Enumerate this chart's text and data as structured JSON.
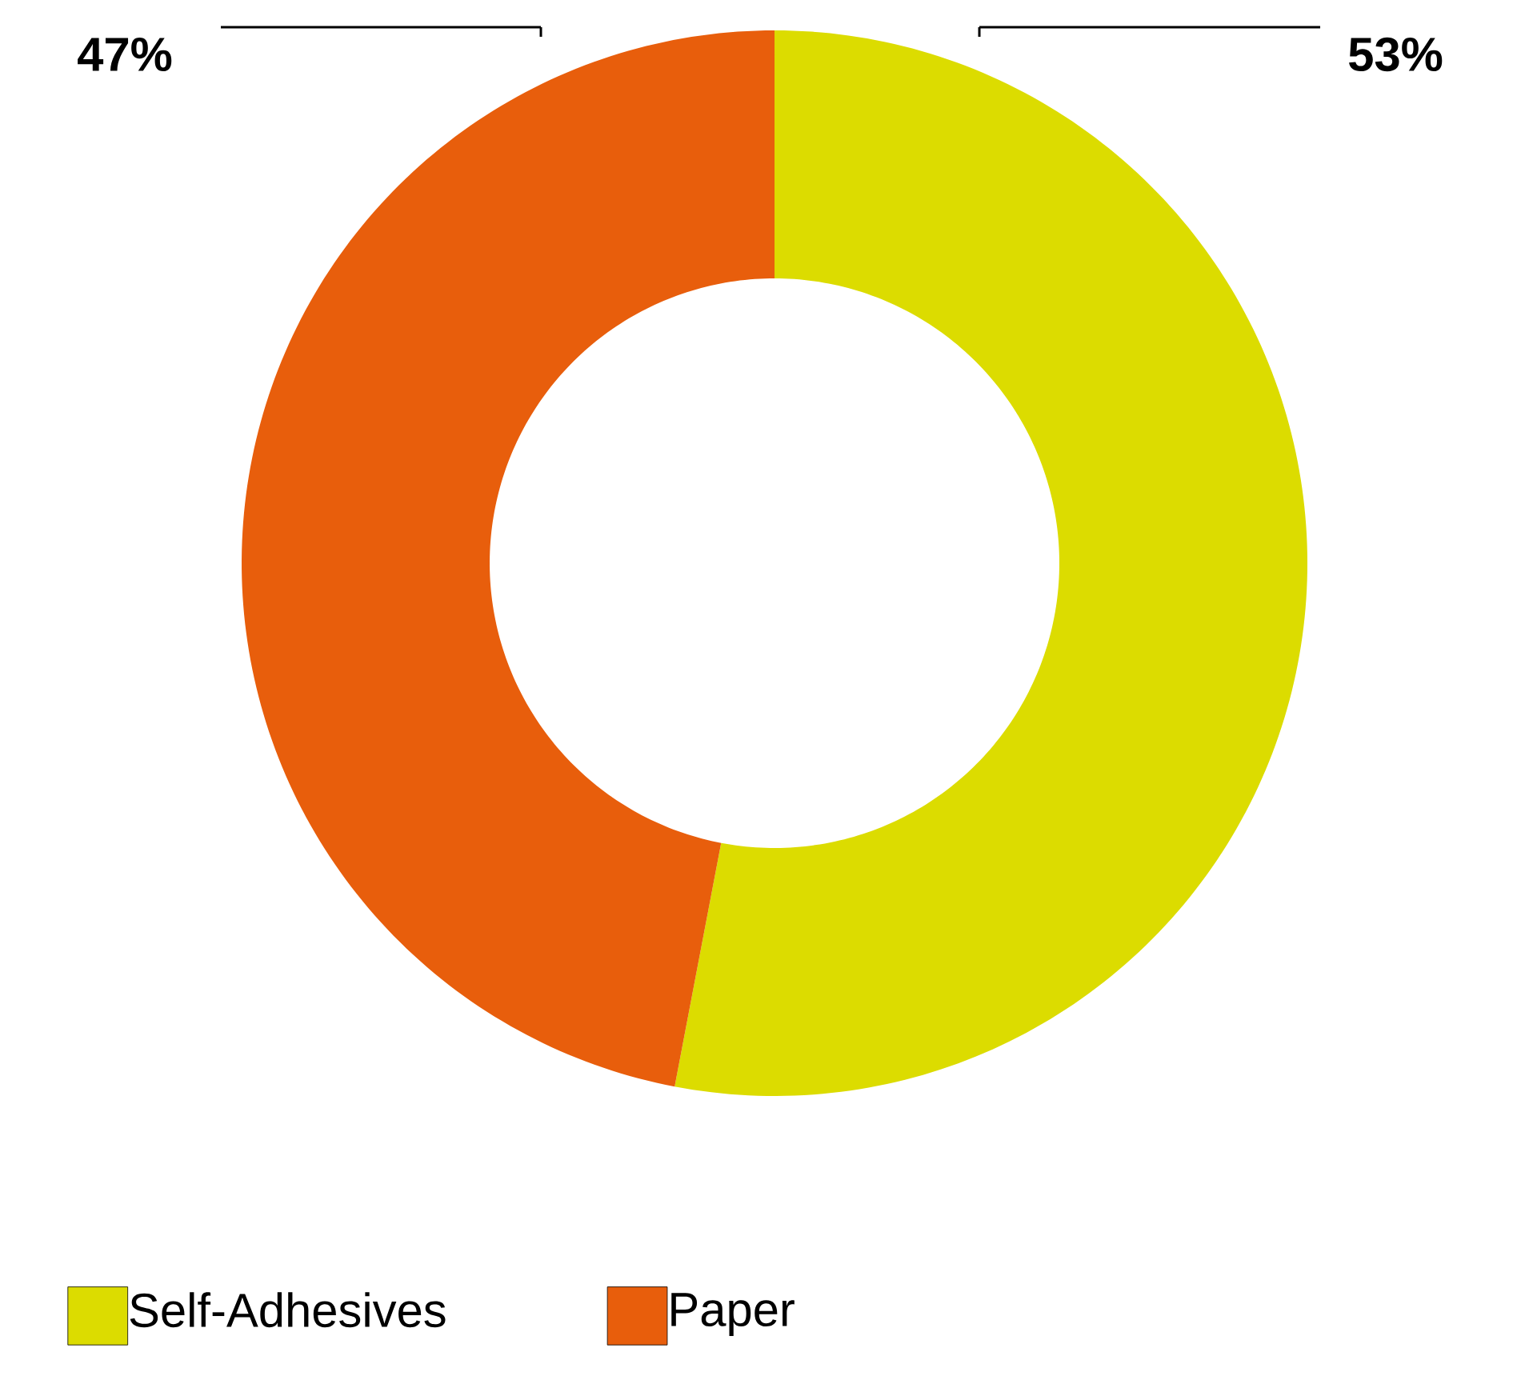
{
  "chart_data": {
    "type": "donut",
    "categories": [
      "Self-Adhesives",
      "Paper"
    ],
    "values": [
      53,
      47
    ],
    "colors": [
      "#dcdc00",
      "#e85e0c"
    ],
    "value_labels": [
      "53%",
      "47%"
    ],
    "legend": "bottom"
  }
}
